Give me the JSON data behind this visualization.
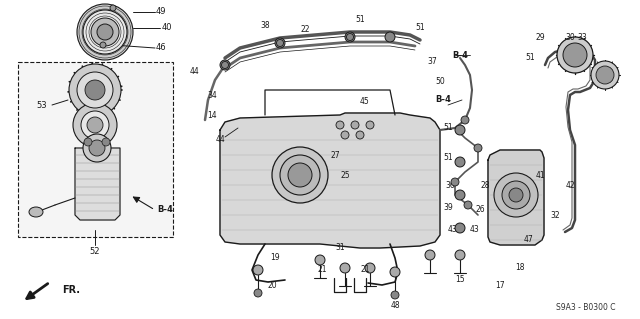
{
  "background_color": "#ffffff",
  "fig_width": 6.4,
  "fig_height": 3.19,
  "dpi": 100,
  "diagram_code": "S9A3 - B0300 C",
  "fr_label": "FR.",
  "line_color": "#1a1a1a",
  "gray_fill": "#d8d8d8",
  "dark_gray": "#888888",
  "mid_gray": "#aaaaaa"
}
